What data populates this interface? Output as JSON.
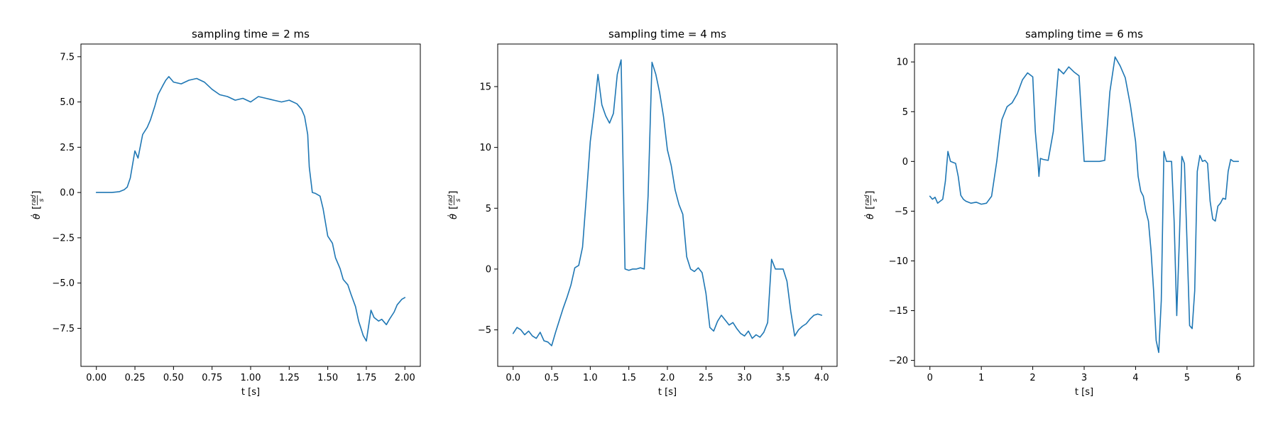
{
  "figure": {
    "background": "#ffffff",
    "series_color": "#1f77b4"
  },
  "chart_data": [
    {
      "type": "line",
      "title": "sampling time = 2 ms",
      "xlabel": "t [s]",
      "ylabel": "θ̇ [rad/s]",
      "xlim": [
        -0.1,
        2.1
      ],
      "ylim": [
        -9.6,
        8.2
      ],
      "xticks": [
        0.0,
        0.25,
        0.5,
        0.75,
        1.0,
        1.25,
        1.5,
        1.75,
        2.0
      ],
      "xtick_labels": [
        "0.00",
        "0.25",
        "0.50",
        "0.75",
        "1.00",
        "1.25",
        "1.50",
        "1.75",
        "2.00"
      ],
      "yticks": [
        -7.5,
        -5.0,
        -2.5,
        0.0,
        2.5,
        5.0,
        7.5
      ],
      "ytick_labels": [
        "−7.5",
        "−5.0",
        "−2.5",
        "0.0",
        "2.5",
        "5.0",
        "7.5"
      ],
      "series": [
        {
          "x": [
            0.0,
            0.05,
            0.1,
            0.15,
            0.18,
            0.2,
            0.22,
            0.25,
            0.27,
            0.3,
            0.33,
            0.35,
            0.38,
            0.4,
            0.43,
            0.45,
            0.47,
            0.5,
            0.55,
            0.6,
            0.65,
            0.7,
            0.75,
            0.8,
            0.85,
            0.9,
            0.95,
            1.0,
            1.05,
            1.1,
            1.15,
            1.2,
            1.25,
            1.3,
            1.33,
            1.35,
            1.37,
            1.38,
            1.4,
            1.42,
            1.45,
            1.47,
            1.5,
            1.53,
            1.55,
            1.58,
            1.6,
            1.63,
            1.65,
            1.68,
            1.7,
            1.73,
            1.75,
            1.78,
            1.8,
            1.83,
            1.85,
            1.88,
            1.9,
            1.93,
            1.95,
            1.98,
            2.0
          ],
          "y": [
            0.0,
            0.0,
            0.0,
            0.05,
            0.15,
            0.3,
            0.8,
            2.3,
            1.9,
            3.2,
            3.6,
            4.0,
            4.8,
            5.4,
            5.9,
            6.2,
            6.4,
            6.1,
            6.0,
            6.2,
            6.3,
            6.1,
            5.7,
            5.4,
            5.3,
            5.1,
            5.2,
            5.0,
            5.3,
            5.2,
            5.1,
            5.0,
            5.1,
            4.9,
            4.6,
            4.2,
            3.2,
            1.4,
            0.0,
            -0.05,
            -0.2,
            -0.9,
            -2.4,
            -2.8,
            -3.6,
            -4.2,
            -4.8,
            -5.1,
            -5.6,
            -6.3,
            -7.1,
            -7.9,
            -8.2,
            -6.5,
            -6.9,
            -7.1,
            -7.0,
            -7.3,
            -7.0,
            -6.6,
            -6.2,
            -5.9,
            -5.8
          ]
        }
      ]
    },
    {
      "type": "line",
      "title": "sampling time = 4 ms",
      "xlabel": "t [s]",
      "ylabel": "θ̇ [rad/s]",
      "xlim": [
        -0.2,
        4.2
      ],
      "ylim": [
        -8.0,
        18.5
      ],
      "xticks": [
        0.0,
        0.5,
        1.0,
        1.5,
        2.0,
        2.5,
        3.0,
        3.5,
        4.0
      ],
      "xtick_labels": [
        "0.0",
        "0.5",
        "1.0",
        "1.5",
        "2.0",
        "2.5",
        "3.0",
        "3.5",
        "4.0"
      ],
      "yticks": [
        -5,
        0,
        5,
        10,
        15
      ],
      "ytick_labels": [
        "−5",
        "0",
        "5",
        "10",
        "15"
      ],
      "series": [
        {
          "x": [
            0.0,
            0.05,
            0.1,
            0.15,
            0.2,
            0.25,
            0.3,
            0.35,
            0.4,
            0.45,
            0.5,
            0.55,
            0.6,
            0.65,
            0.7,
            0.75,
            0.8,
            0.85,
            0.9,
            0.95,
            1.0,
            1.05,
            1.1,
            1.15,
            1.2,
            1.25,
            1.3,
            1.35,
            1.4,
            1.45,
            1.5,
            1.55,
            1.6,
            1.65,
            1.7,
            1.75,
            1.8,
            1.85,
            1.9,
            1.95,
            2.0,
            2.05,
            2.1,
            2.15,
            2.2,
            2.25,
            2.3,
            2.35,
            2.4,
            2.45,
            2.5,
            2.55,
            2.6,
            2.65,
            2.7,
            2.75,
            2.8,
            2.85,
            2.9,
            2.95,
            3.0,
            3.05,
            3.1,
            3.15,
            3.2,
            3.25,
            3.3,
            3.35,
            3.4,
            3.45,
            3.5,
            3.55,
            3.6,
            3.65,
            3.7,
            3.75,
            3.8,
            3.85,
            3.9,
            3.95,
            4.0
          ],
          "y": [
            -5.3,
            -4.8,
            -5.0,
            -5.4,
            -5.1,
            -5.5,
            -5.7,
            -5.2,
            -5.9,
            -6.0,
            -6.3,
            -5.2,
            -4.2,
            -3.2,
            -2.3,
            -1.3,
            0.1,
            0.3,
            1.8,
            6.0,
            10.5,
            13.0,
            16.0,
            13.5,
            12.6,
            12.0,
            12.8,
            16.0,
            17.2,
            0.0,
            -0.1,
            0.0,
            0.0,
            0.1,
            0.0,
            6.0,
            17.0,
            16.0,
            14.5,
            12.5,
            9.8,
            8.5,
            6.5,
            5.3,
            4.5,
            1.0,
            0.0,
            -0.2,
            0.1,
            -0.3,
            -2.0,
            -4.8,
            -5.1,
            -4.3,
            -3.8,
            -4.2,
            -4.6,
            -4.4,
            -4.9,
            -5.3,
            -5.5,
            -5.1,
            -5.7,
            -5.4,
            -5.6,
            -5.2,
            -4.4,
            0.8,
            0.0,
            0.0,
            0.0,
            -1.0,
            -3.5,
            -5.5,
            -5.0,
            -4.7,
            -4.5,
            -4.1,
            -3.8,
            -3.7,
            -3.8
          ]
        }
      ]
    },
    {
      "type": "line",
      "title": "sampling time = 6 ms",
      "xlabel": "t [s]",
      "ylabel": "θ̇ [rad/s]",
      "xlim": [
        -0.3,
        6.3
      ],
      "ylim": [
        -20.6,
        11.8
      ],
      "xticks": [
        0,
        1,
        2,
        3,
        4,
        5,
        6
      ],
      "xtick_labels": [
        "0",
        "1",
        "2",
        "3",
        "4",
        "5",
        "6"
      ],
      "yticks": [
        -20,
        -15,
        -10,
        -5,
        0,
        5,
        10
      ],
      "ytick_labels": [
        "−20",
        "−15",
        "−10",
        "−5",
        "0",
        "5",
        "10"
      ],
      "series": [
        {
          "x": [
            0.0,
            0.05,
            0.1,
            0.15,
            0.2,
            0.25,
            0.3,
            0.35,
            0.4,
            0.45,
            0.5,
            0.55,
            0.6,
            0.65,
            0.7,
            0.8,
            0.9,
            1.0,
            1.1,
            1.2,
            1.3,
            1.35,
            1.4,
            1.5,
            1.6,
            1.7,
            1.8,
            1.9,
            2.0,
            2.05,
            2.1,
            2.12,
            2.15,
            2.2,
            2.3,
            2.4,
            2.5,
            2.6,
            2.7,
            2.8,
            2.9,
            3.0,
            3.05,
            3.1,
            3.2,
            3.3,
            3.4,
            3.5,
            3.6,
            3.7,
            3.8,
            3.9,
            4.0,
            4.05,
            4.1,
            4.15,
            4.2,
            4.25,
            4.3,
            4.35,
            4.4,
            4.45,
            4.5,
            4.55,
            4.6,
            4.65,
            4.7,
            4.75,
            4.8,
            4.85,
            4.9,
            4.95,
            5.0,
            5.05,
            5.1,
            5.15,
            5.2,
            5.25,
            5.3,
            5.35,
            5.4,
            5.45,
            5.5,
            5.55,
            5.6,
            5.65,
            5.7,
            5.75,
            5.8,
            5.85,
            5.9,
            5.95,
            6.0
          ],
          "y": [
            -3.5,
            -3.8,
            -3.6,
            -4.2,
            -4.0,
            -3.8,
            -2.0,
            1.0,
            0.0,
            -0.1,
            -0.2,
            -1.5,
            -3.4,
            -3.8,
            -4.0,
            -4.2,
            -4.1,
            -4.3,
            -4.2,
            -3.5,
            0.0,
            2.2,
            4.2,
            5.5,
            5.9,
            6.8,
            8.2,
            8.9,
            8.5,
            3.0,
            0.1,
            -1.5,
            0.3,
            0.2,
            0.1,
            3.0,
            9.3,
            8.8,
            9.5,
            9.0,
            8.6,
            0.0,
            0.0,
            0.0,
            0.0,
            0.0,
            0.1,
            7.0,
            10.5,
            9.6,
            8.4,
            5.6,
            2.0,
            -1.5,
            -3.0,
            -3.5,
            -5.0,
            -6.0,
            -9.0,
            -13.0,
            -18.0,
            -19.2,
            -14.0,
            1.0,
            0.0,
            0.0,
            0.0,
            -6.0,
            -15.5,
            -8.0,
            0.5,
            -0.2,
            -8.0,
            -16.5,
            -16.8,
            -13.0,
            -1.0,
            0.6,
            0.0,
            0.1,
            -0.2,
            -4.0,
            -5.8,
            -6.0,
            -4.5,
            -4.2,
            -3.7,
            -3.8,
            -1.0,
            0.2,
            0.0,
            0.0,
            0.0
          ]
        }
      ]
    }
  ]
}
